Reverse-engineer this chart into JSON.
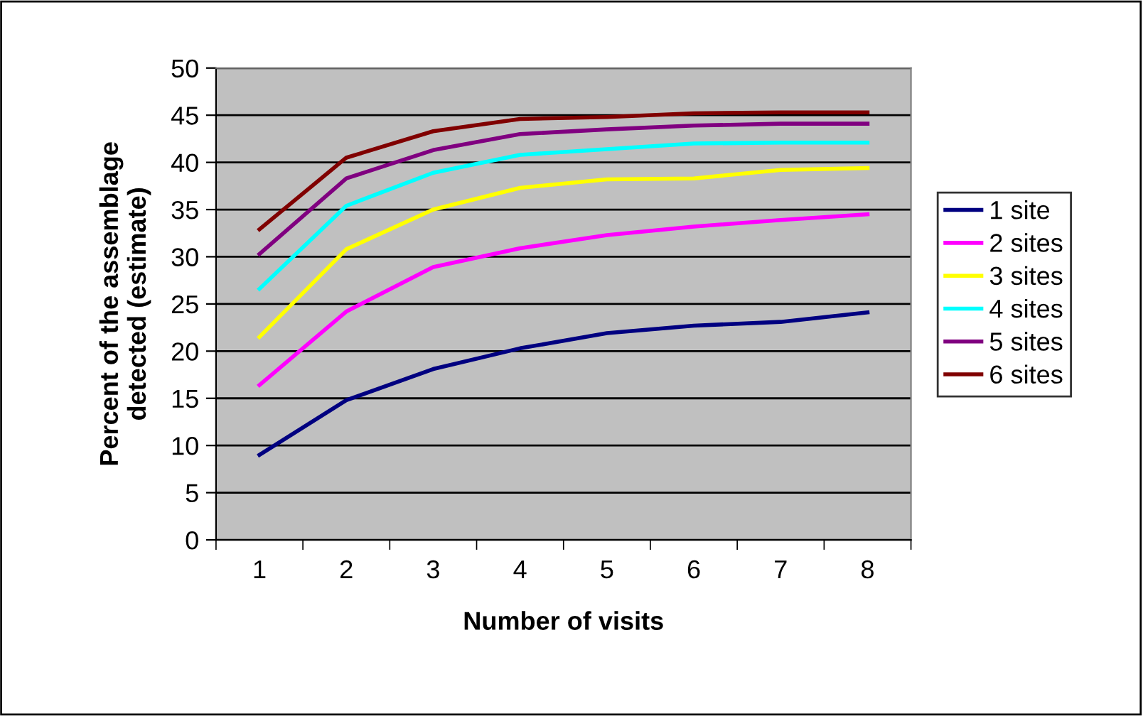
{
  "chart_data": {
    "type": "line",
    "xlabel": "Number of visits",
    "ylabel": "Percent of the assemblage\ndetected (estimate)",
    "categories": [
      "1",
      "2",
      "3",
      "4",
      "5",
      "6",
      "7",
      "8"
    ],
    "series": [
      {
        "name": "1 site",
        "color": "#000080",
        "values": [
          9,
          14.8,
          18.1,
          20.3,
          21.9,
          22.7,
          23.1,
          24.1
        ]
      },
      {
        "name": "2 sites",
        "color": "#ff00ff",
        "values": [
          16.4,
          24.2,
          28.9,
          30.9,
          32.3,
          33.2,
          33.9,
          34.5
        ]
      },
      {
        "name": "3 sites",
        "color": "#ffff00",
        "values": [
          21.5,
          30.8,
          35,
          37.3,
          38.2,
          38.3,
          39.2,
          39.4
        ]
      },
      {
        "name": "4 sites",
        "color": "#00ffff",
        "values": [
          26.6,
          35.4,
          38.9,
          40.8,
          41.4,
          42,
          42.1,
          42.1
        ]
      },
      {
        "name": "5 sites",
        "color": "#800080",
        "values": [
          30.3,
          38.3,
          41.3,
          43,
          43.5,
          43.9,
          44.1,
          44.1
        ]
      },
      {
        "name": "6 sites",
        "color": "#800000",
        "values": [
          32.9,
          40.5,
          43.3,
          44.6,
          44.8,
          45.2,
          45.3,
          45.3
        ]
      }
    ],
    "ylim": [
      0,
      50
    ],
    "yticks": [
      0,
      5,
      10,
      15,
      20,
      25,
      30,
      35,
      40,
      45,
      50
    ],
    "grid": "y",
    "legend": "right",
    "marker": "none",
    "line_style": "solid"
  }
}
